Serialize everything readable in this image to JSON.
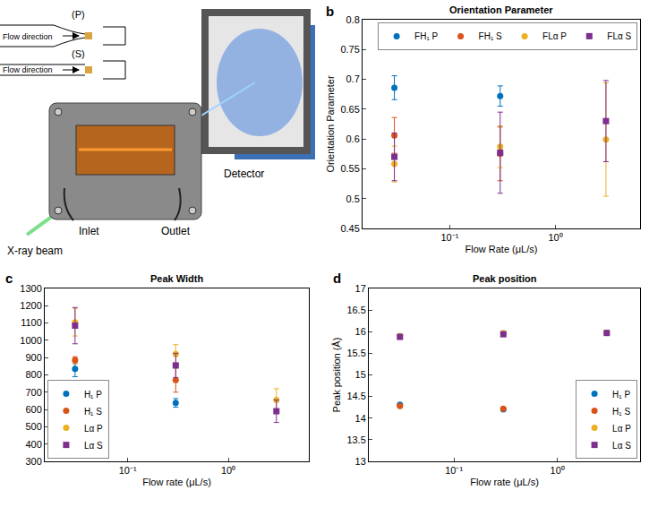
{
  "diagram": {
    "labels": {
      "p": "(P)",
      "s": "(S)",
      "flow_p": "Flow direction",
      "flow_s": "Flow direction",
      "detector": "Detector",
      "beam": "X-ray beam",
      "inlet": "Inlet",
      "outlet": "Outlet"
    }
  },
  "chart_data": [
    {
      "panel": "b",
      "type": "scatter",
      "title": "Orientation Parameter",
      "x_label": "Flow Rate (μL/s)",
      "y_label": "Orientation Parameter",
      "log": "x",
      "grid": false,
      "legend": "upper right",
      "marker": "circle",
      "x": [
        0.03,
        0.3,
        3
      ],
      "xlim": [
        0.015,
        6.3
      ],
      "xticks": [
        {
          "value": 0.1,
          "label": "10⁻¹"
        },
        {
          "value": 1,
          "label": "10⁰"
        }
      ],
      "ylim": [
        0.45,
        0.8
      ],
      "yticks": [
        0.45,
        0.5,
        0.55,
        0.6,
        0.65,
        0.7,
        0.75,
        0.8
      ],
      "series": [
        {
          "name": "FH₁ P",
          "color": "#0072BD",
          "marker": "circle",
          "values": [
            0.686,
            0.672,
            null
          ],
          "error": [
            0.02,
            0.017,
            null
          ]
        },
        {
          "name": "FH₁ S",
          "color": "#D95319",
          "marker": "circle",
          "values": [
            0.606,
            0.575,
            null
          ],
          "error": [
            0.03,
            0.045,
            null
          ]
        },
        {
          "name": "FLα P",
          "color": "#EDB120",
          "marker": "circle",
          "values": [
            0.558,
            0.587,
            0.599
          ],
          "error": [
            0.03,
            0.035,
            0.095
          ]
        },
        {
          "name": "FLα S",
          "color": "#7E2F8E",
          "marker": "square",
          "values": [
            0.57,
            0.577,
            0.63
          ],
          "error": [
            0.04,
            0.068,
            0.068
          ]
        }
      ]
    },
    {
      "panel": "c",
      "type": "scatter",
      "title": "Peak Width",
      "x_label": "Flow rate (μL/s)",
      "log": "x",
      "grid": false,
      "legend": "lower left",
      "marker": "circle",
      "x": [
        0.03,
        0.3,
        3
      ],
      "xlim": [
        0.015,
        6.3
      ],
      "xticks": [
        {
          "value": 0.1,
          "label": "10⁻¹"
        },
        {
          "value": 1,
          "label": "10⁰"
        }
      ],
      "ylim": [
        300,
        1300
      ],
      "yticks": [
        300,
        400,
        500,
        600,
        700,
        800,
        900,
        1000,
        1100,
        1200,
        1300
      ],
      "series": [
        {
          "name": "H₁ P",
          "color": "#0072BD",
          "marker": "circle",
          "values": [
            835,
            638,
            null
          ],
          "error": [
            45,
            25,
            null
          ]
        },
        {
          "name": "H₁ S",
          "color": "#D95319",
          "marker": "circle",
          "values": [
            885,
            770,
            null
          ],
          "error": [
            20,
            70,
            null
          ]
        },
        {
          "name": "Lα P",
          "color": "#EDB120",
          "marker": "circle",
          "values": [
            1105,
            920,
            655
          ],
          "error": [
            80,
            55,
            65
          ]
        },
        {
          "name": "Lα S",
          "color": "#7E2F8E",
          "marker": "square",
          "values": [
            1085,
            855,
            590
          ],
          "error": [
            105,
            70,
            65
          ]
        }
      ]
    },
    {
      "panel": "d",
      "type": "scatter",
      "title": "Peak position",
      "x_label": "Flow rate (μL/s)",
      "y_label": "Peak position (Å)",
      "log": "x",
      "grid": false,
      "legend": "lower right",
      "marker": "circle",
      "x": [
        0.03,
        0.3,
        3
      ],
      "xlim": [
        0.015,
        6.3
      ],
      "xticks": [
        {
          "value": 0.1,
          "label": "10⁻¹"
        },
        {
          "value": 1,
          "label": "10⁰"
        }
      ],
      "ylim": [
        13,
        17
      ],
      "yticks": [
        13,
        13.5,
        14,
        14.5,
        15,
        15.5,
        16,
        16.5,
        17
      ],
      "series": [
        {
          "name": "H₁ P",
          "color": "#0072BD",
          "marker": "circle",
          "values": [
            14.31,
            14.2,
            null
          ]
        },
        {
          "name": "H₁ S",
          "color": "#D95319",
          "marker": "circle",
          "values": [
            14.28,
            14.22,
            null
          ]
        },
        {
          "name": "Lα P",
          "color": "#EDB120",
          "marker": "circle",
          "values": [
            15.9,
            15.97,
            15.98
          ]
        },
        {
          "name": "Lα S",
          "color": "#7E2F8E",
          "marker": "square",
          "values": [
            15.88,
            15.94,
            15.97
          ]
        }
      ]
    }
  ]
}
